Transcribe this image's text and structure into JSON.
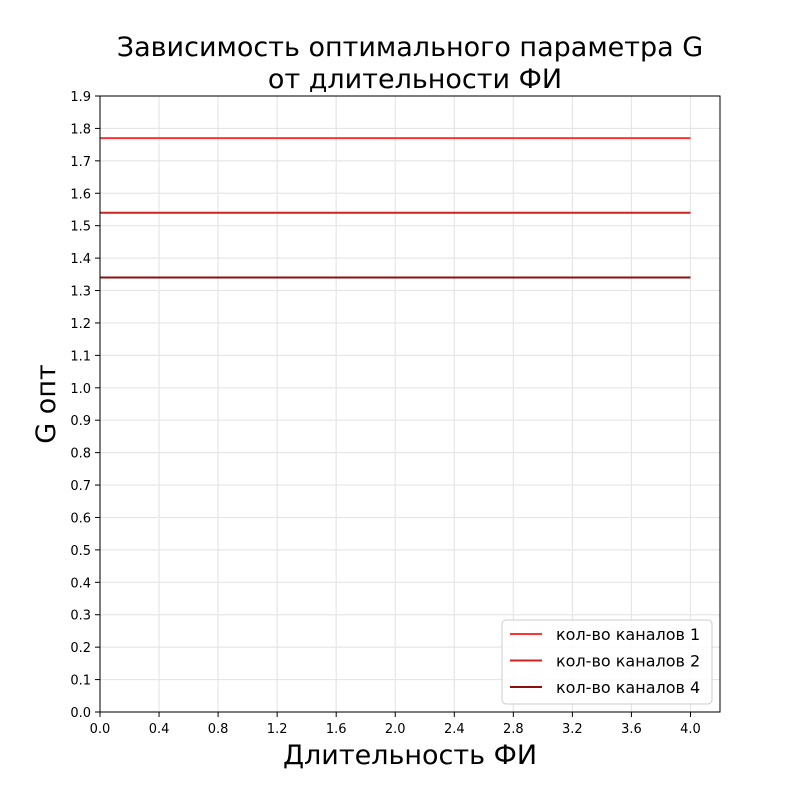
{
  "chart_data": {
    "type": "line",
    "title": "Зависимость оптимального параметра G",
    "title_line2": "от длительности ФИ",
    "xlabel": "Длительность ФИ",
    "ylabel": "G опт",
    "xlim": [
      0.0,
      4.2
    ],
    "ylim": [
      0.0,
      1.9
    ],
    "x_ticks": [
      "0.0",
      "0.4",
      "0.8",
      "1.2",
      "1.6",
      "2.0",
      "2.4",
      "2.8",
      "3.2",
      "3.6",
      "4.0"
    ],
    "y_ticks": [
      "0.0",
      "0.1",
      "0.2",
      "0.3",
      "0.4",
      "0.5",
      "0.6",
      "0.7",
      "0.8",
      "0.9",
      "1.0",
      "1.1",
      "1.2",
      "1.3",
      "1.4",
      "1.5",
      "1.6",
      "1.7",
      "1.8",
      "1.9"
    ],
    "grid": true,
    "legend_position": "bottom-right",
    "series": [
      {
        "name": "кол-во каналов 1",
        "color": "#ff3333",
        "x": [
          0.0,
          4.0
        ],
        "y": [
          1.77,
          1.77
        ]
      },
      {
        "name": "кол-во каналов 2",
        "color": "#cc2222",
        "x": [
          0.0,
          4.0
        ],
        "y": [
          1.54,
          1.54
        ]
      },
      {
        "name": "кол-во каналов 4",
        "color": "#8b1010",
        "x": [
          0.0,
          4.0
        ],
        "y": [
          1.34,
          1.34
        ]
      }
    ]
  }
}
